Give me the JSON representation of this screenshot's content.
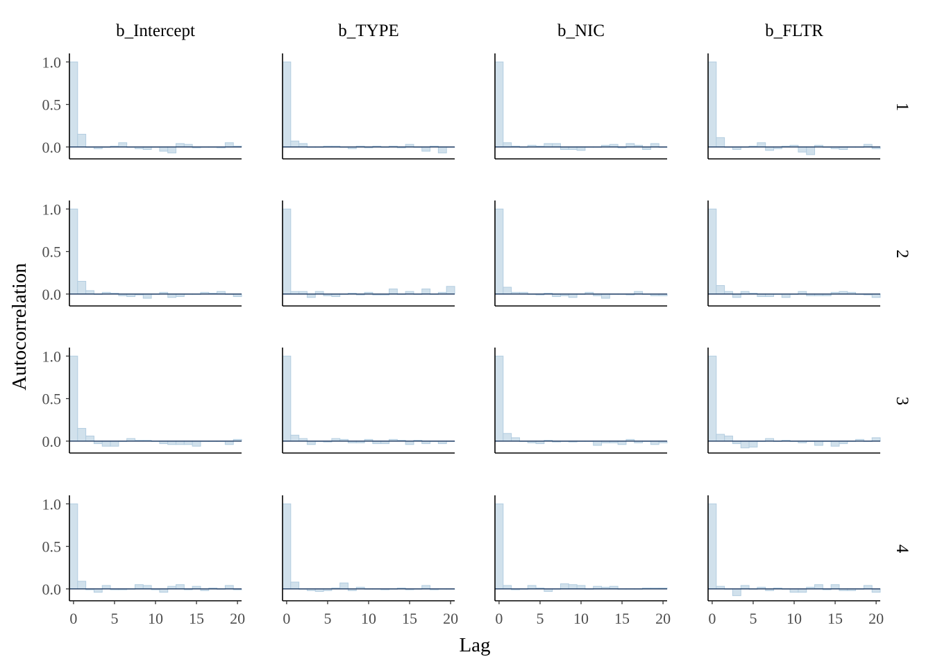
{
  "chart_data": {
    "type": "bar",
    "xlabel": "Lag",
    "ylabel": "Autocorrelation",
    "parameters": [
      "b_Intercept",
      "b_TYPE",
      "b_NIC",
      "b_FLTR"
    ],
    "chains": [
      "1",
      "2",
      "3",
      "4"
    ],
    "lags": [
      0,
      1,
      2,
      3,
      4,
      5,
      6,
      7,
      8,
      9,
      10,
      11,
      12,
      13,
      14,
      15,
      16,
      17,
      18,
      19,
      20
    ],
    "x_ticks": [
      0,
      5,
      10,
      15,
      20
    ],
    "x_tick_labels": [
      "0",
      "5",
      "10",
      "15",
      "20"
    ],
    "xlim": [
      -0.5,
      20.5
    ],
    "y_ticks": [
      0.0,
      0.5,
      1.0
    ],
    "y_tick_labels": [
      "0.0",
      "0.5",
      "1.0"
    ],
    "ylim": [
      -0.14,
      1.1
    ],
    "grid": false,
    "panels": [
      [
        [
          1.0,
          0.15,
          0.0,
          -0.02,
          0.0,
          0.01,
          0.05,
          0.0,
          -0.02,
          -0.03,
          0.0,
          -0.05,
          -0.07,
          0.04,
          0.03,
          -0.01,
          0.0,
          0.0,
          -0.01,
          0.05,
          0.01
        ],
        [
          1.0,
          0.07,
          0.04,
          0.0,
          0.0,
          0.01,
          0.01,
          0.0,
          -0.02,
          0.01,
          -0.01,
          0.01,
          0.0,
          0.01,
          -0.01,
          0.03,
          0.0,
          -0.05,
          0.01,
          -0.07,
          0.0
        ],
        [
          1.0,
          0.05,
          0.01,
          0.0,
          0.02,
          0.01,
          0.04,
          0.04,
          -0.03,
          -0.03,
          -0.04,
          0.0,
          0.0,
          0.02,
          0.03,
          -0.01,
          0.04,
          0.02,
          -0.03,
          0.04,
          0.0
        ],
        [
          1.0,
          0.11,
          0.0,
          -0.03,
          0.0,
          0.01,
          0.05,
          -0.04,
          -0.02,
          0.01,
          0.02,
          -0.06,
          -0.09,
          0.02,
          0.0,
          -0.02,
          -0.03,
          0.0,
          0.0,
          0.03,
          -0.02
        ]
      ],
      [
        [
          1.0,
          0.15,
          0.04,
          0.0,
          0.02,
          0.01,
          -0.02,
          -0.03,
          -0.01,
          -0.05,
          0.0,
          0.02,
          -0.04,
          -0.03,
          0.0,
          0.0,
          0.02,
          0.01,
          0.03,
          0.0,
          -0.03
        ],
        [
          1.0,
          0.03,
          0.03,
          -0.04,
          0.03,
          -0.02,
          -0.03,
          0.0,
          0.01,
          -0.01,
          0.02,
          -0.01,
          -0.01,
          0.06,
          0.0,
          0.03,
          0.0,
          0.06,
          0.0,
          0.02,
          0.09
        ],
        [
          1.0,
          0.08,
          0.02,
          0.02,
          0.0,
          -0.01,
          0.01,
          -0.03,
          -0.02,
          -0.04,
          0.0,
          0.02,
          -0.02,
          -0.05,
          0.0,
          0.0,
          -0.01,
          0.03,
          0.0,
          -0.02,
          -0.02
        ],
        [
          1.0,
          0.1,
          0.03,
          -0.04,
          0.03,
          0.01,
          -0.03,
          -0.03,
          0.0,
          -0.04,
          0.0,
          0.03,
          -0.02,
          -0.02,
          -0.02,
          0.02,
          0.03,
          0.02,
          0.0,
          -0.01,
          -0.04
        ]
      ],
      [
        [
          1.0,
          0.15,
          0.06,
          -0.03,
          -0.06,
          -0.06,
          0.0,
          0.03,
          0.01,
          0.01,
          0.0,
          -0.03,
          -0.04,
          -0.04,
          -0.04,
          -0.06,
          0.0,
          0.0,
          0.0,
          -0.04,
          0.02
        ],
        [
          1.0,
          0.07,
          0.03,
          -0.04,
          0.0,
          -0.01,
          0.03,
          0.02,
          -0.02,
          -0.02,
          0.02,
          -0.03,
          -0.03,
          0.02,
          0.01,
          -0.04,
          0.01,
          -0.03,
          0.0,
          -0.03,
          0.0
        ],
        [
          1.0,
          0.09,
          0.04,
          0.0,
          -0.02,
          -0.03,
          0.01,
          -0.01,
          0.0,
          -0.01,
          0.0,
          0.0,
          -0.05,
          -0.02,
          -0.02,
          -0.04,
          0.02,
          -0.02,
          0.0,
          -0.04,
          -0.02
        ],
        [
          1.0,
          0.08,
          0.06,
          -0.03,
          -0.08,
          -0.07,
          0.0,
          0.03,
          0.0,
          0.01,
          0.0,
          -0.02,
          0.0,
          -0.05,
          0.0,
          -0.06,
          -0.03,
          0.0,
          0.02,
          0.0,
          0.04
        ]
      ],
      [
        [
          1.0,
          0.09,
          -0.01,
          -0.04,
          0.04,
          -0.01,
          -0.01,
          0.0,
          0.05,
          0.04,
          -0.01,
          -0.04,
          0.03,
          0.05,
          -0.01,
          0.03,
          -0.02,
          0.01,
          0.0,
          0.04,
          -0.01
        ],
        [
          1.0,
          0.08,
          0.0,
          -0.02,
          -0.03,
          -0.02,
          0.01,
          0.07,
          -0.02,
          0.02,
          0.0,
          0.0,
          -0.01,
          0.0,
          0.01,
          -0.01,
          0.0,
          0.04,
          -0.01,
          0.0,
          0.0
        ],
        [
          1.0,
          0.04,
          -0.01,
          0.0,
          0.04,
          0.01,
          -0.03,
          0.0,
          0.06,
          0.05,
          0.04,
          0.0,
          0.03,
          0.02,
          0.03,
          0.0,
          0.0,
          0.0,
          0.01,
          0.01,
          0.01
        ],
        [
          1.0,
          0.03,
          0.0,
          -0.08,
          0.04,
          0.0,
          0.02,
          -0.02,
          0.01,
          0.0,
          -0.04,
          -0.04,
          0.02,
          0.05,
          -0.01,
          0.05,
          -0.02,
          -0.02,
          0.0,
          0.04,
          -0.04
        ]
      ]
    ]
  }
}
